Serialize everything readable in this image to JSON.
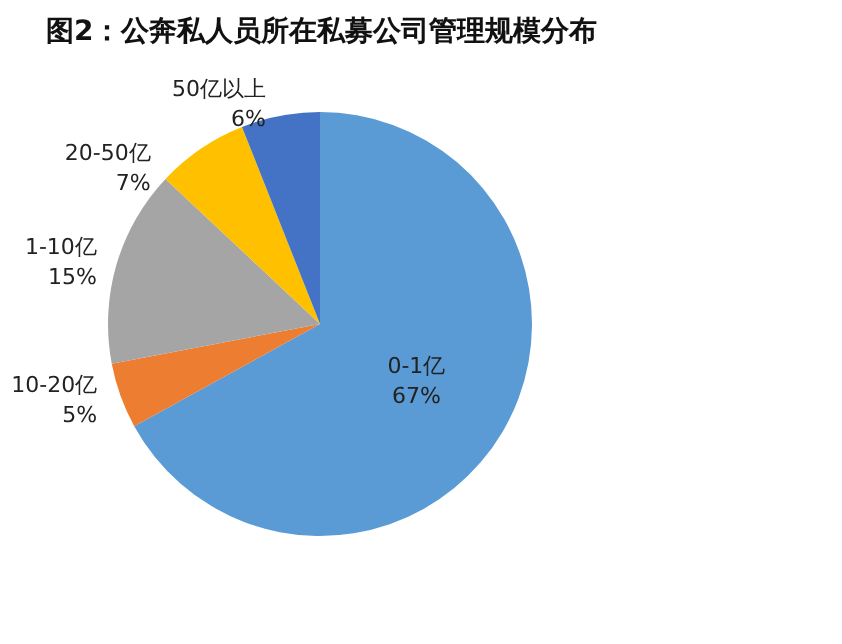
{
  "chart_data": {
    "type": "pie",
    "title": "图2：公奔私人员所在私募公司管理规模分布",
    "categories": [
      "0-1亿",
      "10-20亿",
      "1-10亿",
      "20-50亿",
      "50亿以上"
    ],
    "values": [
      67,
      5,
      15,
      7,
      6
    ],
    "value_labels": [
      "67%",
      "5%",
      "15%",
      "7%",
      "6%"
    ],
    "colors": [
      "#5b9bd5",
      "#ed7d31",
      "#a5a5a5",
      "#ffc000",
      "#4472c4"
    ],
    "legend": false
  }
}
